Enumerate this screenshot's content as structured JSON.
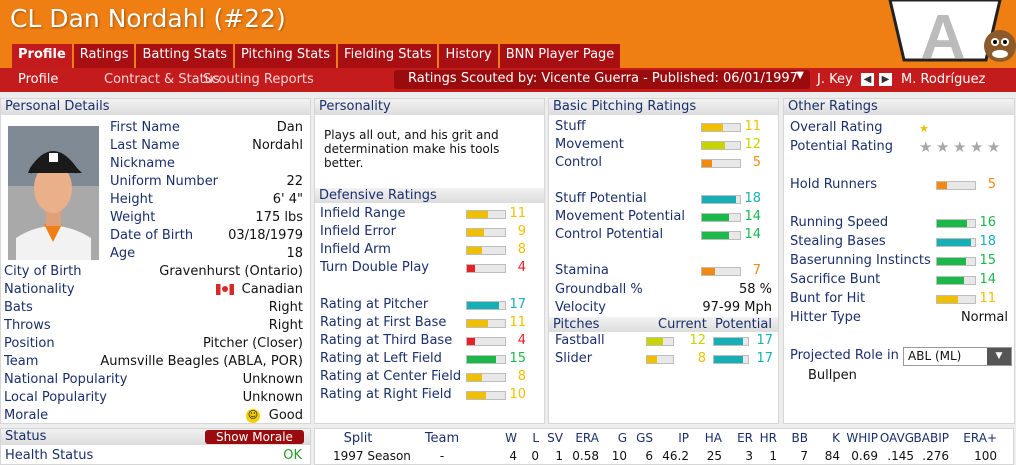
{
  "window_title": "CL Dan Nordahl (#22)",
  "tabs": [
    "Profile",
    "Ratings",
    "Batting Stats",
    "Pitching Stats",
    "Fielding Stats",
    "History",
    "BNN Player Page"
  ],
  "subnav": [
    "Profile",
    "Contract & Status",
    "Scouting Reports"
  ],
  "scouting": {
    "text": "Ratings Scouted by: Vicente Guerra - Published: 06/01/1997",
    "prev_player": "J. Key",
    "next_player": "M. Rodríguez"
  },
  "personal": {
    "header": "Personal Details",
    "rows": [
      [
        "First Name",
        "Dan"
      ],
      [
        "Last Name",
        "Nordahl"
      ],
      [
        "Nickname",
        ""
      ],
      [
        "Uniform Number",
        "22"
      ],
      [
        "Height",
        "6' 4\""
      ],
      [
        "Weight",
        "175 lbs"
      ],
      [
        "Date of Birth",
        "03/18/1979"
      ],
      [
        "Age",
        "18"
      ],
      [
        "City of Birth",
        "Gravenhurst (Ontario)"
      ],
      [
        "Nationality",
        "Canadian"
      ],
      [
        "Bats",
        "Right"
      ],
      [
        "Throws",
        "Right"
      ],
      [
        "Position",
        "Pitcher (Closer)"
      ],
      [
        "Team",
        "Aumsville Beagles (ABLA, POR)"
      ],
      [
        "National Popularity",
        "Unknown"
      ],
      [
        "Local Popularity",
        "Unknown"
      ],
      [
        "Morale",
        "Good"
      ]
    ]
  },
  "status": {
    "header": "Status",
    "show_morale": "Show Morale",
    "health_label": "Health Status",
    "health_value": "OK"
  },
  "personality": {
    "header": "Personality",
    "text": "Plays all out, and his grit and determination make his tools better."
  },
  "defensive": {
    "header": "Defensive Ratings",
    "rows": [
      {
        "label": "Infield Range",
        "value": 11,
        "color": "#f0c000"
      },
      {
        "label": "Infield Error",
        "value": 9,
        "color": "#f0c000"
      },
      {
        "label": "Infield Arm",
        "value": 8,
        "color": "#f0c000"
      },
      {
        "label": "Turn Double Play",
        "value": 4,
        "color": "#e8202a"
      },
      {
        "label": "Rating at Pitcher",
        "value": 17,
        "color": "#16b0b4"
      },
      {
        "label": "Rating at First Base",
        "value": 11,
        "color": "#f0c000"
      },
      {
        "label": "Rating at Third Base",
        "value": 4,
        "color": "#e8202a"
      },
      {
        "label": "Rating at Left Field",
        "value": 15,
        "color": "#1cb84a"
      },
      {
        "label": "Rating at Center Field",
        "value": 8,
        "color": "#f0c000"
      },
      {
        "label": "Rating at Right Field",
        "value": 10,
        "color": "#f0c000"
      }
    ]
  },
  "pitching": {
    "header": "Basic Pitching Ratings",
    "rows": [
      {
        "label": "Stuff",
        "value": 11,
        "color": "#f0c000"
      },
      {
        "label": "Movement",
        "value": 12,
        "color": "#c8d400"
      },
      {
        "label": "Control",
        "value": 5,
        "color": "#f08a10"
      },
      {
        "label": "Stuff Potential",
        "value": 18,
        "color": "#16b0b4"
      },
      {
        "label": "Movement Potential",
        "value": 14,
        "color": "#1cb84a"
      },
      {
        "label": "Control Potential",
        "value": 14,
        "color": "#1cb84a"
      },
      {
        "label": "Stamina",
        "value": 7,
        "color": "#f08a10"
      }
    ],
    "groundball_label": "Groundball %",
    "groundball": "58 %",
    "velocity_label": "Velocity",
    "velocity": "97-99 Mph",
    "pitches_header": "Pitches",
    "current": "Current",
    "potential": "Potential",
    "pitches": [
      {
        "name": "Fastball",
        "cur": 12,
        "cur_color": "#c8d400",
        "pot": 17,
        "pot_color": "#16b0b4"
      },
      {
        "name": "Slider",
        "cur": 8,
        "cur_color": "#f0c000",
        "pot": 17,
        "pot_color": "#16b0b4"
      }
    ]
  },
  "other": {
    "header": "Other Ratings",
    "overall_label": "Overall Rating",
    "overall_stars": 0.5,
    "potential_label": "Potential Rating",
    "potential_stars": 0,
    "rows": [
      {
        "label": "Hold Runners",
        "value": 5,
        "color": "#f08a10"
      },
      {
        "label": "Running Speed",
        "value": 16,
        "color": "#1cb84a"
      },
      {
        "label": "Stealing Bases",
        "value": 18,
        "color": "#16b0b4"
      },
      {
        "label": "Baserunning Instincts",
        "value": 15,
        "color": "#1cb84a"
      },
      {
        "label": "Sacrifice Bunt",
        "value": 14,
        "color": "#1cb84a"
      },
      {
        "label": "Bunt for Hit",
        "value": 11,
        "color": "#f0c000"
      }
    ],
    "hitter_type_label": "Hitter Type",
    "hitter_type": "Normal",
    "projected_label": "Projected Role in",
    "projected_league": "ABL (ML)",
    "projected_role": "Bullpen"
  },
  "stats": {
    "headers": [
      "Split",
      "Team",
      "W",
      "L",
      "SV",
      "ERA",
      "G",
      "GS",
      "IP",
      "HA",
      "ER",
      "HR",
      "BB",
      "K",
      "WHIP",
      "OAVG",
      "BABIP",
      "ERA+"
    ],
    "row": [
      "1997 Season",
      "-",
      "4",
      "0",
      "1",
      "0.58",
      "10",
      "6",
      "46.2",
      "25",
      "3",
      "1",
      "7",
      "84",
      "0.69",
      ".145",
      ".276",
      "100"
    ]
  },
  "colors": {
    "accent": "#f07f13",
    "tab": "#a80f12",
    "subbar": "#c41c1c",
    "label": "#1a2f6b"
  }
}
